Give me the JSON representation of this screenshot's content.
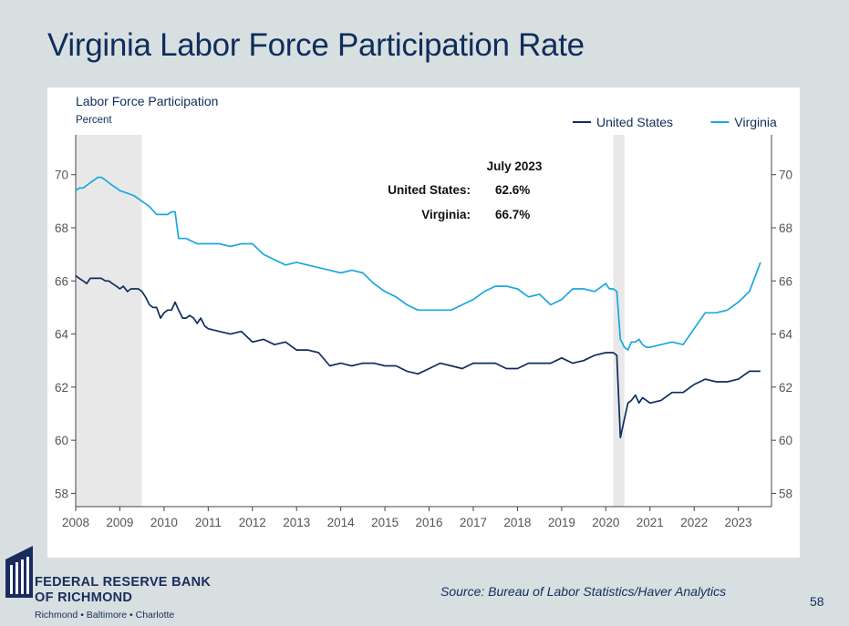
{
  "slide": {
    "title": "Virginia Labor Force Participation Rate",
    "source": "Source: Bureau of Labor Statistics/Haver Analytics",
    "page_number": "58"
  },
  "logo": {
    "line1": "FEDERAL RESERVE BANK",
    "line2": "OF RICHMOND",
    "cities": "Richmond • Baltimore • Charlotte",
    "color": "#1a2c5e"
  },
  "chart_data": {
    "type": "line",
    "title": "Labor Force Participation",
    "subtitle": "Percent",
    "ylim": [
      57.5,
      71.5
    ],
    "yticks": [
      58,
      60,
      62,
      64,
      66,
      68,
      70
    ],
    "xlim": [
      2008.0,
      2023.75
    ],
    "xticks": [
      2008,
      2009,
      2010,
      2011,
      2012,
      2013,
      2014,
      2015,
      2016,
      2017,
      2018,
      2019,
      2020,
      2021,
      2022,
      2023
    ],
    "legend_position": "top-right",
    "grid": false,
    "recessions": [
      [
        2008.0,
        2009.5
      ],
      [
        2020.17,
        2020.42
      ]
    ],
    "recession_color": "#e8e8e8",
    "annotation": {
      "title": "July 2023",
      "rows": [
        {
          "label": "United States:",
          "value": "62.6%"
        },
        {
          "label": "Virginia:",
          "value": "66.7%"
        }
      ]
    },
    "series": [
      {
        "name": "United States",
        "color": "#0f2d5c",
        "x": [
          2008.0,
          2008.08,
          2008.17,
          2008.25,
          2008.33,
          2008.42,
          2008.5,
          2008.58,
          2008.67,
          2008.75,
          2008.83,
          2008.92,
          2009.0,
          2009.08,
          2009.17,
          2009.25,
          2009.33,
          2009.42,
          2009.5,
          2009.58,
          2009.67,
          2009.75,
          2009.83,
          2009.92,
          2010.0,
          2010.08,
          2010.17,
          2010.25,
          2010.33,
          2010.42,
          2010.5,
          2010.58,
          2010.67,
          2010.75,
          2010.83,
          2010.92,
          2011.0,
          2011.25,
          2011.5,
          2011.75,
          2012.0,
          2012.25,
          2012.5,
          2012.75,
          2013.0,
          2013.25,
          2013.5,
          2013.75,
          2014.0,
          2014.25,
          2014.5,
          2014.75,
          2015.0,
          2015.25,
          2015.5,
          2015.75,
          2016.0,
          2016.25,
          2016.5,
          2016.75,
          2017.0,
          2017.25,
          2017.5,
          2017.75,
          2018.0,
          2018.25,
          2018.5,
          2018.75,
          2019.0,
          2019.25,
          2019.5,
          2019.75,
          2020.0,
          2020.08,
          2020.17,
          2020.25,
          2020.33,
          2020.42,
          2020.5,
          2020.58,
          2020.67,
          2020.75,
          2020.83,
          2020.92,
          2021.0,
          2021.25,
          2021.5,
          2021.75,
          2022.0,
          2022.25,
          2022.5,
          2022.75,
          2023.0,
          2023.25,
          2023.5
        ],
        "values": [
          66.2,
          66.1,
          66.0,
          65.9,
          66.1,
          66.1,
          66.1,
          66.1,
          66.0,
          66.0,
          65.9,
          65.8,
          65.7,
          65.8,
          65.6,
          65.7,
          65.7,
          65.7,
          65.6,
          65.4,
          65.1,
          65.0,
          65.0,
          64.6,
          64.8,
          64.9,
          64.9,
          65.2,
          64.9,
          64.6,
          64.6,
          64.7,
          64.6,
          64.4,
          64.6,
          64.3,
          64.2,
          64.1,
          64.0,
          64.1,
          63.7,
          63.8,
          63.6,
          63.7,
          63.4,
          63.4,
          63.3,
          62.8,
          62.9,
          62.8,
          62.9,
          62.9,
          62.8,
          62.8,
          62.6,
          62.5,
          62.7,
          62.9,
          62.8,
          62.7,
          62.9,
          62.9,
          62.9,
          62.7,
          62.7,
          62.9,
          62.9,
          62.9,
          63.1,
          62.9,
          63.0,
          63.2,
          63.3,
          63.3,
          63.3,
          63.2,
          60.1,
          60.8,
          61.4,
          61.5,
          61.7,
          61.4,
          61.6,
          61.5,
          61.4,
          61.5,
          61.8,
          61.8,
          62.1,
          62.3,
          62.2,
          62.2,
          62.3,
          62.6,
          62.6
        ]
      },
      {
        "name": "Virginia",
        "color": "#1ba7e0",
        "x": [
          2008.0,
          2008.08,
          2008.17,
          2008.25,
          2008.33,
          2008.42,
          2008.5,
          2008.58,
          2008.67,
          2008.75,
          2008.83,
          2008.92,
          2009.0,
          2009.17,
          2009.33,
          2009.5,
          2009.67,
          2009.83,
          2010.0,
          2010.08,
          2010.17,
          2010.25,
          2010.33,
          2010.5,
          2010.75,
          2011.0,
          2011.25,
          2011.5,
          2011.75,
          2012.0,
          2012.25,
          2012.5,
          2012.75,
          2013.0,
          2013.25,
          2013.5,
          2013.75,
          2014.0,
          2014.25,
          2014.5,
          2014.75,
          2015.0,
          2015.25,
          2015.5,
          2015.75,
          2016.0,
          2016.25,
          2016.5,
          2016.75,
          2017.0,
          2017.25,
          2017.5,
          2017.75,
          2018.0,
          2018.25,
          2018.5,
          2018.75,
          2019.0,
          2019.25,
          2019.5,
          2019.75,
          2020.0,
          2020.08,
          2020.17,
          2020.25,
          2020.33,
          2020.42,
          2020.5,
          2020.58,
          2020.67,
          2020.75,
          2020.83,
          2020.92,
          2021.0,
          2021.25,
          2021.5,
          2021.75,
          2022.0,
          2022.25,
          2022.5,
          2022.75,
          2023.0,
          2023.25,
          2023.5
        ],
        "values": [
          69.4,
          69.5,
          69.5,
          69.6,
          69.7,
          69.8,
          69.9,
          69.9,
          69.8,
          69.7,
          69.6,
          69.5,
          69.4,
          69.3,
          69.2,
          69.0,
          68.8,
          68.5,
          68.5,
          68.5,
          68.6,
          68.6,
          67.6,
          67.6,
          67.4,
          67.4,
          67.4,
          67.3,
          67.4,
          67.4,
          67.0,
          66.8,
          66.6,
          66.7,
          66.6,
          66.5,
          66.4,
          66.3,
          66.4,
          66.3,
          65.9,
          65.6,
          65.4,
          65.1,
          64.9,
          64.9,
          64.9,
          64.9,
          65.1,
          65.3,
          65.6,
          65.8,
          65.8,
          65.7,
          65.4,
          65.5,
          65.1,
          65.3,
          65.7,
          65.7,
          65.6,
          65.9,
          65.7,
          65.7,
          65.6,
          63.8,
          63.5,
          63.4,
          63.7,
          63.7,
          63.8,
          63.6,
          63.5,
          63.5,
          63.6,
          63.7,
          63.6,
          64.2,
          64.8,
          64.8,
          64.9,
          65.2,
          65.6,
          66.7
        ]
      }
    ]
  }
}
